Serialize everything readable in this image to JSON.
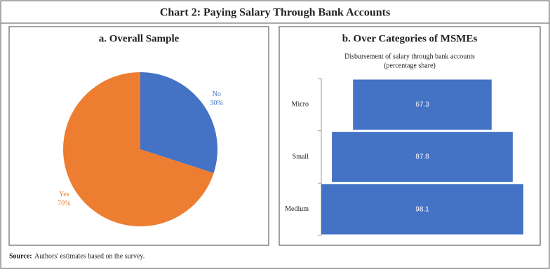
{
  "title": "Chart 2: Paying Salary Through Bank Accounts",
  "source": {
    "label": "Source:",
    "text": "Authors' estimates based on the survey."
  },
  "chart_data": [
    {
      "type": "pie",
      "title": "a. Overall Sample",
      "categories": [
        "No",
        "Yes"
      ],
      "values": [
        30,
        70
      ],
      "value_labels": [
        "30%",
        "70%"
      ],
      "colors": [
        "#4472c4",
        "#ed7d31"
      ]
    },
    {
      "type": "funnel",
      "title": "b. Over Categories of MSMEs",
      "subtitle": [
        "Disbursement of salary through bank accounts",
        "(percentage share)"
      ],
      "categories": [
        "Micro",
        "Small",
        "Medium"
      ],
      "values": [
        67.3,
        87.8,
        98.1
      ],
      "color": "#4472c4"
    }
  ]
}
